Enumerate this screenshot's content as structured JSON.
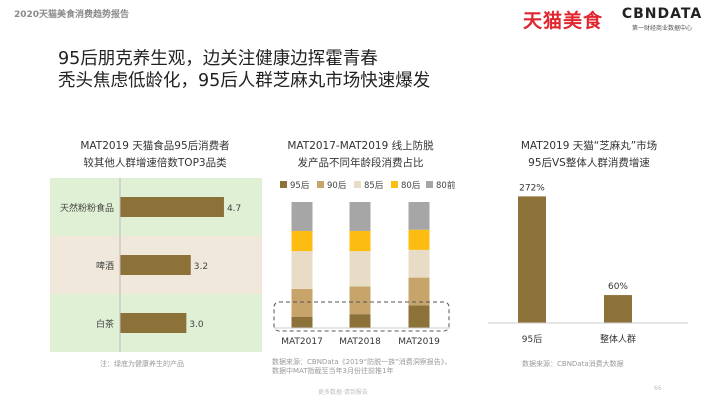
{
  "header": {
    "report_title": "2020天猫美食消费趋势报告",
    "logo_tmall": "天猫美食",
    "logo_cbn": "CBNDATA",
    "logo_cbn_sub": "第一财经商业数据中心"
  },
  "headline": {
    "line1": "95后朋克养生观，边关注健康边挥霍青春",
    "line2": "秃头焦虑低龄化，95后人群芝麻丸市场快速爆发"
  },
  "chart_data": [
    {
      "type": "bar",
      "orientation": "horizontal",
      "title": "MAT2019 天猫食品95后消费者\n较其他人群增速倍数TOP3品类",
      "title_line1": "MAT2019 天猫食品95后消费者",
      "title_line2": "较其他人群增速倍数TOP3品类",
      "categories": [
        "天然粉粉食品",
        "啤酒",
        "白茶"
      ],
      "values": [
        4.7,
        3.2,
        3.0
      ],
      "value_labels": [
        "4.7",
        "3.2",
        "3.0"
      ],
      "xlim": [
        0,
        5.2
      ],
      "note": "注：绿底为健康养生的产品",
      "colors": {
        "bar": "#8c7139",
        "highlight_bg": "#dff0d4",
        "alt_bg": "#efe8db"
      }
    },
    {
      "type": "bar",
      "stacked": true,
      "title": "MAT2017-MAT2019 线上防脱\n发产品不同年龄段消费占比",
      "title_line1": "MAT2017-MAT2019 线上防脱",
      "title_line2": "发产品不同年龄段消费占比",
      "categories": [
        "MAT2017",
        "MAT2018",
        "MAT2019"
      ],
      "series": [
        {
          "name": "95后",
          "values": [
            9,
            11,
            18
          ],
          "color": "#8c7139"
        },
        {
          "name": "90后",
          "values": [
            22,
            22,
            22
          ],
          "color": "#c7a46a"
        },
        {
          "name": "85后",
          "values": [
            30,
            28,
            22
          ],
          "color": "#e8dcc6"
        },
        {
          "name": "80后",
          "values": [
            16,
            16,
            16
          ],
          "color": "#fcbc12"
        },
        {
          "name": "80前",
          "values": [
            23,
            23,
            22
          ],
          "color": "#a6a6a6"
        }
      ],
      "ylim": [
        0,
        100
      ],
      "legend_position": "top",
      "note": "数据来源：CBNData《2019“防脱一族”消费洞察报告》，数据中MAT指截至当年3月份往前推1年"
    },
    {
      "type": "bar",
      "title": "MAT2019 天猫“芝麻丸”市场\n95后VS整体人群消费增速",
      "title_line1": "MAT2019 天猫“芝麻丸”市场",
      "title_line2": "95后VS整体人群消费增速",
      "categories": [
        "95后",
        "整体人群"
      ],
      "values": [
        272,
        60
      ],
      "value_labels": [
        "272%",
        "60%"
      ],
      "ylim": [
        0,
        290
      ],
      "note": "数据来源：CBNData消费大数据",
      "colors": {
        "bar": "#8c7139"
      }
    }
  ],
  "footer": {
    "text": "更多数据·请到报告",
    "page": "66"
  }
}
